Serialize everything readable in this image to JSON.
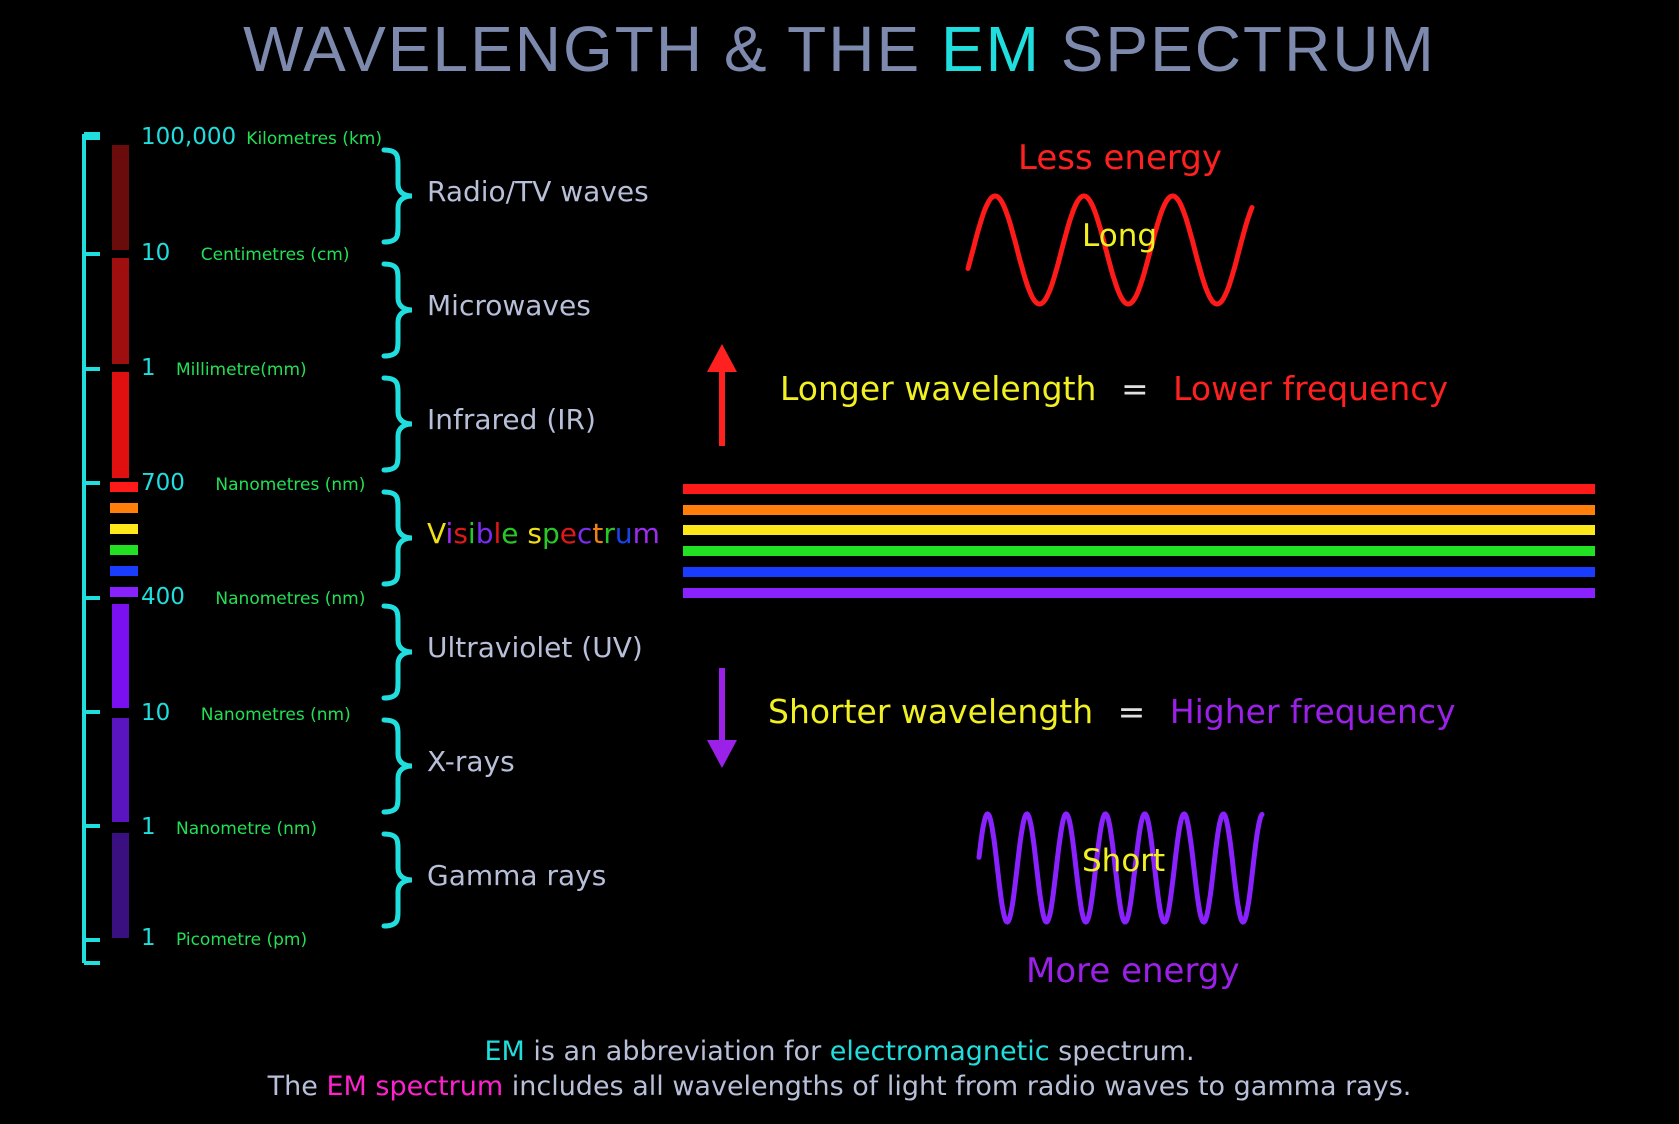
{
  "title": {
    "prefix": "WAVELENGTH & THE ",
    "highlight": "EM",
    "suffix": " SPECTRUM"
  },
  "scale_ticks": [
    {
      "value": "100,000",
      "unit": "Kilometres (km)"
    },
    {
      "value": "10",
      "unit": "Centimetres (cm)"
    },
    {
      "value": "1",
      "unit": "Millimetre(mm)"
    },
    {
      "value": "700",
      "unit": "Nanometres (nm)"
    },
    {
      "value": "400",
      "unit": "Nanometres (nm)"
    },
    {
      "value": "10",
      "unit": "Nanometres (nm)"
    },
    {
      "value": "1",
      "unit": "Nanometre (nm)"
    },
    {
      "value": "1",
      "unit": "Picometre (pm)"
    }
  ],
  "bands": [
    {
      "label": "Radio/TV waves"
    },
    {
      "label": "Microwaves"
    },
    {
      "label": "Infrared (IR)"
    },
    {
      "label": "Visible spectrum"
    },
    {
      "label": "Ultraviolet (UV)"
    },
    {
      "label": "X-rays"
    },
    {
      "label": "Gamma rays"
    }
  ],
  "visible_label_letters": [
    {
      "ch": "V",
      "color": "#f0e014"
    },
    {
      "ch": "i",
      "color": "#9b2cf0"
    },
    {
      "ch": "s",
      "color": "#e01818"
    },
    {
      "ch": "i",
      "color": "#28c828"
    },
    {
      "ch": "b",
      "color": "#7a2cf0"
    },
    {
      "ch": "l",
      "color": "#e01818"
    },
    {
      "ch": "e",
      "color": "#28c828"
    },
    {
      "ch": " ",
      "color": "#ffffff"
    },
    {
      "ch": "s",
      "color": "#f0e014"
    },
    {
      "ch": "p",
      "color": "#28c828"
    },
    {
      "ch": "e",
      "color": "#e01818"
    },
    {
      "ch": "c",
      "color": "#7a2cf0"
    },
    {
      "ch": "t",
      "color": "#f08010"
    },
    {
      "ch": "r",
      "color": "#28c828"
    },
    {
      "ch": "u",
      "color": "#1a44e8"
    },
    {
      "ch": "m",
      "color": "#9b2cf0"
    }
  ],
  "colors": {
    "scale_line": "#20dede",
    "brace": "#20dede",
    "spectrum": [
      "#ff1a1a",
      "#ff7f0a",
      "#ffe81a",
      "#22e022",
      "#1a3cff",
      "#8a22ff"
    ],
    "scale_bars": [
      "#6b0c0c",
      "#a00f0f",
      "#e01010",
      "#7a10f0",
      "#5a14c0",
      "#3a1080"
    ],
    "less_energy": "#ff2020",
    "more_energy": "#9b20e8",
    "lower_frequency": "#ff2020",
    "higher_frequency": "#9b20e8",
    "wavelength_text": "#f0f022"
  },
  "top_wave": {
    "energy_label": "Less energy",
    "word": "Long"
  },
  "bottom_wave": {
    "energy_label": "More energy",
    "word": "Short"
  },
  "relations": [
    {
      "left": "Longer wavelength",
      "equals": "=",
      "right": "Lower frequency",
      "arrow": "arrow-up-icon"
    },
    {
      "left": "Shorter wavelength",
      "equals": "=",
      "right": "Higher frequency",
      "arrow": "arrow-down-icon"
    }
  ],
  "footer": {
    "line1": {
      "em": "EM",
      "middle": " is an abbreviation for ",
      "highlight": "electromagnetic",
      "end": " spectrum."
    },
    "line2": {
      "start": "The ",
      "highlight": "EM spectrum",
      "end": " includes all wavelengths of light from radio waves to gamma rays."
    }
  }
}
